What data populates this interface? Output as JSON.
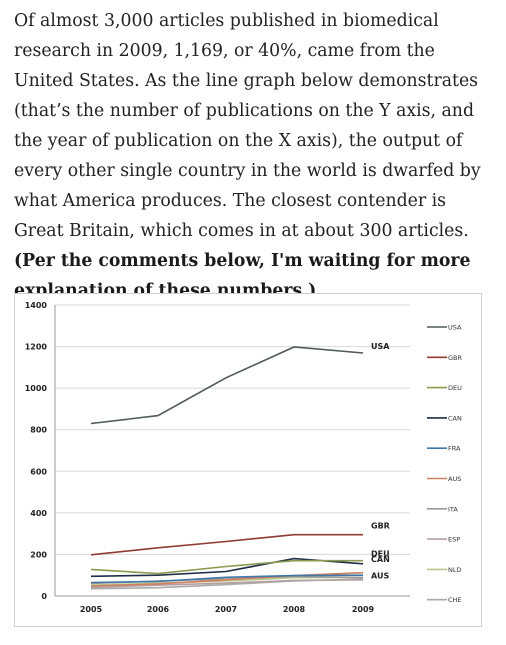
{
  "article": {
    "text": "Of almost 3,000 articles published in biomedical research in 2009, 1,169, or 40%, came from the United States. As the line graph below demonstrates (that’s the number of publications on the Y axis, and the year of publication on the X axis), the output of every other single country in the world is dwarfed by what America produces. The closest contender is Great Britain, which comes in at about 300 articles.",
    "bold_text": "(Per the comments below, I'm waiting for more explanation of these numbers.)"
  },
  "chart_data": {
    "type": "line",
    "title": "",
    "xlabel": "",
    "ylabel": "",
    "x": [
      "2005",
      "2006",
      "2007",
      "2008",
      "2009"
    ],
    "ylim": [
      0,
      1400
    ],
    "yticks": [
      "0",
      "200",
      "400",
      "600",
      "800",
      "1000",
      "1200",
      "1400"
    ],
    "grid": true,
    "legend_position": "right",
    "series": [
      {
        "name": "USA",
        "color": "#505a5a",
        "values": [
          830,
          868,
          1050,
          1198,
          1169
        ]
      },
      {
        "name": "GBR",
        "color": "#8e3b32",
        "values": [
          198,
          232,
          262,
          295,
          295
        ]
      },
      {
        "name": "DEU",
        "color": "#8b9a4e",
        "values": [
          128,
          108,
          142,
          170,
          170
        ]
      },
      {
        "name": "CAN",
        "color": "#1e2f47",
        "values": [
          95,
          100,
          118,
          180,
          155
        ]
      },
      {
        "name": "FRA",
        "color": "#3f78a8",
        "values": [
          65,
          70,
          90,
          98,
          100
        ]
      },
      {
        "name": "AUS",
        "color": "#d08060",
        "values": [
          48,
          58,
          78,
          98,
          112
        ]
      },
      {
        "name": "ITA",
        "color": "#9a9a9a",
        "values": [
          60,
          72,
          82,
          95,
          88
        ]
      },
      {
        "name": "ESP",
        "color": "#b5a0a0",
        "values": [
          42,
          52,
          62,
          75,
          78
        ]
      },
      {
        "name": "NLD",
        "color": "#b7c78e",
        "values": [
          52,
          62,
          72,
          88,
          90
        ]
      },
      {
        "name": "CHE",
        "color": "#aaaaaa",
        "values": [
          35,
          40,
          55,
          72,
          82
        ]
      }
    ],
    "annotations": [
      {
        "text": "USA",
        "series": "USA"
      },
      {
        "text": "GBR",
        "series": "GBR"
      },
      {
        "text": "DEU",
        "series": "DEU"
      },
      {
        "text": "CAN",
        "series": "CAN"
      },
      {
        "text": "AUS",
        "series": "AUS"
      }
    ]
  }
}
